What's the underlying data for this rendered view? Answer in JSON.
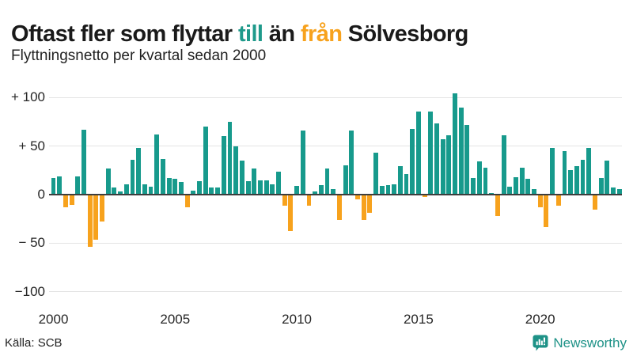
{
  "title": {
    "segments": [
      {
        "text": "Oftast fler som flyttar ",
        "color": "#1a1a1a"
      },
      {
        "text": "till",
        "color": "#1f9a8b"
      },
      {
        "text": " än ",
        "color": "#1a1a1a"
      },
      {
        "text": "från",
        "color": "#f7a21d"
      },
      {
        "text": " Sölvesborg",
        "color": "#1a1a1a"
      }
    ]
  },
  "subtitle": "Flyttningsnetto per kvartal sedan 2000",
  "source": "Källa: SCB",
  "logo": {
    "name": "Newsworthy",
    "icon": "newsworthy-speech-bubble-chart-icon",
    "color": "#1e9287"
  },
  "colors": {
    "positive_bar": "#179a8c",
    "negative_bar": "#f7a21d",
    "gridline": "#e4e4e4",
    "zero_axis": "#3d3d3d",
    "text": "#262626"
  },
  "chart_data": {
    "type": "bar",
    "title": "Oftast fler som flyttar till än från Sölvesborg",
    "subtitle": "Flyttningsnetto per kvartal sedan 2000",
    "xlabel": "",
    "ylabel": "",
    "frequency": "quarterly",
    "start_year": 2000,
    "start_quarter": 1,
    "ylim": [
      -100,
      110
    ],
    "grid": true,
    "x_ticks": [
      2000,
      2005,
      2010,
      2015,
      2020
    ],
    "y_ticks": [
      {
        "value": 100,
        "label": "+ 100"
      },
      {
        "value": 50,
        "label": "+ 50"
      },
      {
        "value": 0,
        "label": "0"
      },
      {
        "value": -50,
        "label": "− 50"
      },
      {
        "value": -100,
        "label": "−100"
      }
    ],
    "values": [
      17,
      19,
      -12,
      -10,
      19,
      67,
      -53,
      -46,
      -27,
      27,
      7,
      3,
      11,
      36,
      48,
      11,
      8,
      62,
      37,
      17,
      16,
      13,
      -12,
      4,
      14,
      70,
      7,
      7,
      60,
      75,
      50,
      35,
      14,
      27,
      15,
      15,
      11,
      24,
      -11,
      -37,
      9,
      66,
      -11,
      3,
      10,
      27,
      6,
      -25,
      30,
      66,
      -4,
      -25,
      -18,
      43,
      9,
      10,
      11,
      29,
      21,
      68,
      86,
      -2,
      86,
      73,
      57,
      61,
      104,
      90,
      72,
      17,
      34,
      28,
      2,
      -21,
      61,
      8,
      18,
      28,
      16,
      6,
      -12,
      -33,
      48,
      -11,
      45,
      25,
      29,
      36,
      48,
      -15,
      17,
      35,
      7,
      6
    ]
  }
}
